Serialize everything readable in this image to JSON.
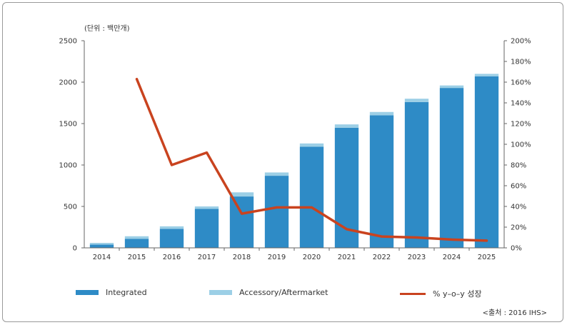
{
  "chart_data": {
    "type": "bar",
    "unit_label": "(단위 : 백만개)",
    "source": "<출처 : 2016 IHS>",
    "categories": [
      "2014",
      "2015",
      "2016",
      "2017",
      "2018",
      "2019",
      "2020",
      "2021",
      "2022",
      "2023",
      "2024",
      "2025"
    ],
    "series": [
      {
        "name": "Integrated",
        "type": "bar",
        "stack": true,
        "color": "#2e8bc6",
        "values": [
          40,
          110,
          230,
          470,
          620,
          870,
          1220,
          1450,
          1600,
          1760,
          1930,
          2070
        ]
      },
      {
        "name": "Accessory/Aftermarket",
        "type": "bar",
        "stack": true,
        "color": "#9ccfe6",
        "values": [
          20,
          30,
          30,
          30,
          50,
          40,
          40,
          40,
          40,
          40,
          30,
          30
        ]
      },
      {
        "name": "% y–o–y 성장",
        "type": "line",
        "axis": "right",
        "color": "#c9431f",
        "values": [
          null,
          163,
          80,
          92,
          33,
          39,
          39,
          18,
          11,
          10,
          8,
          7
        ]
      }
    ],
    "left_axis": {
      "ylim": [
        0,
        2500
      ],
      "ticks": [
        "0",
        "500",
        "1000",
        "1500",
        "2000",
        "2500"
      ]
    },
    "right_axis": {
      "ylim": [
        0,
        200
      ],
      "ticks": [
        "0%",
        "20%",
        "40%",
        "60%",
        "80%",
        "100%",
        "120%",
        "140%",
        "160%",
        "180%",
        "200%"
      ]
    },
    "legend_position": "bottom",
    "grid": false
  }
}
